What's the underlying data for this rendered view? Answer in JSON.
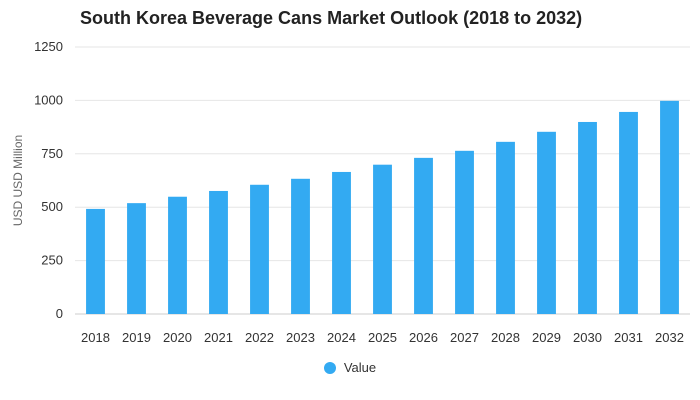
{
  "chart_data": {
    "type": "bar",
    "title": "South Korea Beverage Cans Market Outlook (2018 to 2032)",
    "xlabel": "",
    "ylabel": "USD USD Million",
    "categories": [
      "2018",
      "2019",
      "2020",
      "2021",
      "2022",
      "2023",
      "2024",
      "2025",
      "2026",
      "2027",
      "2028",
      "2029",
      "2030",
      "2031",
      "2032"
    ],
    "series": [
      {
        "name": "Value",
        "values": [
          492,
          519,
          549,
          576,
          605,
          633,
          665,
          699,
          731,
          764,
          806,
          853,
          899,
          946,
          998
        ],
        "color": "#33aaf2"
      }
    ],
    "ylim": [
      0,
      1250
    ],
    "yticks": [
      0,
      250,
      500,
      750,
      1000,
      1250
    ],
    "grid": true,
    "legend_position": "bottom-center"
  }
}
